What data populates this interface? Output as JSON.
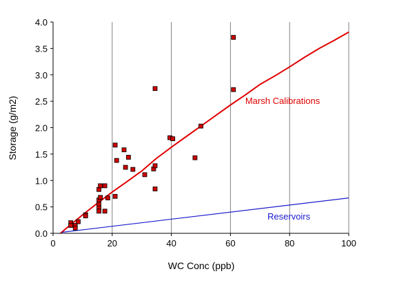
{
  "chart_data": {
    "type": "scatter",
    "title": "",
    "xlabel": "WC Conc (ppb)",
    "ylabel": "Storage (g/m2)",
    "xlim": [
      0,
      100
    ],
    "ylim": [
      0,
      4
    ],
    "x_ticks": [
      "0",
      "20",
      "40",
      "60",
      "80",
      "100"
    ],
    "y_ticks": [
      "0.0",
      "0.5",
      "1.0",
      "1.5",
      "2.0",
      "2.5",
      "3.0",
      "3.5",
      "4.0"
    ],
    "grid": "vertical",
    "points": {
      "color": "#cc0000",
      "x": [
        6,
        6,
        7.5,
        7.5,
        8.5,
        11,
        11,
        15.5,
        15.5,
        15.5,
        15.5,
        15.5,
        16,
        16,
        17.5,
        17.5,
        18.5,
        21,
        21,
        21.5,
        24,
        24.5,
        25.5,
        27,
        31,
        34,
        34.5,
        34.5,
        34.5,
        39.5,
        40.5,
        48,
        50,
        61,
        61
      ],
      "y": [
        0.2,
        0.15,
        0.15,
        0.1,
        0.22,
        0.35,
        0.33,
        0.83,
        0.63,
        0.55,
        0.48,
        0.42,
        0.9,
        0.68,
        0.9,
        0.42,
        0.67,
        1.67,
        0.7,
        1.38,
        1.58,
        1.25,
        1.44,
        1.21,
        1.11,
        1.22,
        2.74,
        1.28,
        0.84,
        1.81,
        1.79,
        1.43,
        2.03,
        2.72,
        3.71
      ]
    },
    "series": [
      {
        "name": "Marsh Calibrations",
        "color": "#e00000",
        "x": [
          2.5,
          5,
          10,
          15,
          20,
          25,
          30,
          35,
          40,
          45,
          50,
          55,
          60,
          65,
          70,
          75,
          80,
          85,
          90,
          95,
          100
        ],
        "y": [
          0.0,
          0.12,
          0.35,
          0.57,
          0.78,
          0.98,
          1.18,
          1.42,
          1.63,
          1.83,
          2.03,
          2.23,
          2.43,
          2.62,
          2.82,
          2.98,
          3.15,
          3.33,
          3.5,
          3.65,
          3.81
        ]
      },
      {
        "name": "Reservoirs",
        "color": "#1a1acc",
        "x": [
          3,
          100
        ],
        "y": [
          0.02,
          0.67
        ]
      }
    ],
    "annotations": [
      {
        "text": "Marsh Calibrations",
        "x": 65,
        "y": 2.45,
        "color": "#e00000"
      },
      {
        "text": "Reservoirs",
        "x": 72.5,
        "y": 0.26,
        "color": "#1a1acc"
      }
    ]
  }
}
